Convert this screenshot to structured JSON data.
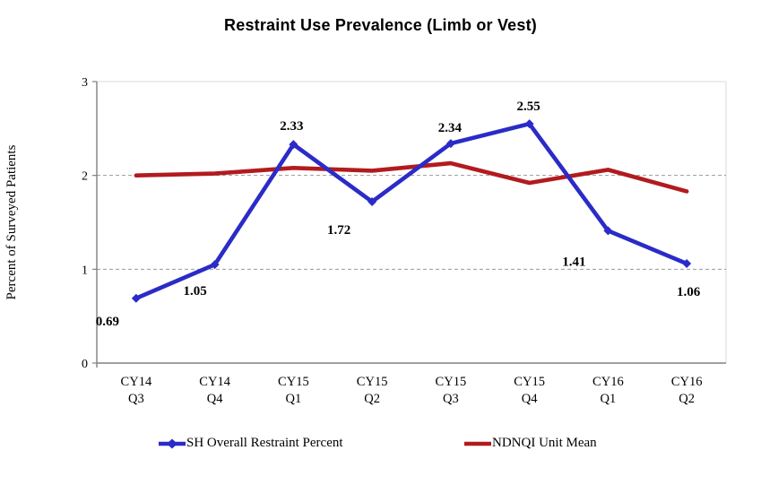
{
  "title": "Restraint Use Prevalence (Limb or Vest)",
  "chart_data": {
    "type": "line",
    "title": "Restraint Use Prevalence (Limb or Vest)",
    "xlabel": "",
    "ylabel": "Percent of Surveyed Patients",
    "ylim": [
      0,
      3
    ],
    "yticks": [
      "0",
      "1",
      "2",
      "3"
    ],
    "grid": "horizontal dashed gridlines at y=1 and y=2, light solid plot border top and right",
    "legend_position": "bottom",
    "categories": [
      [
        "CY14",
        "Q3"
      ],
      [
        "CY14",
        "Q4"
      ],
      [
        "CY15",
        "Q1"
      ],
      [
        "CY15",
        "Q2"
      ],
      [
        "CY15",
        "Q3"
      ],
      [
        "CY15",
        "Q4"
      ],
      [
        "CY16",
        "Q1"
      ],
      [
        "CY16",
        "Q2"
      ]
    ],
    "series": [
      {
        "name": "SH Overall Restraint Percent",
        "color": "#2B2BC8",
        "marker": "diamond",
        "values": [
          0.69,
          1.05,
          2.33,
          1.72,
          2.34,
          2.55,
          1.41,
          1.06
        ],
        "data_labels": [
          "0.69",
          "1.05",
          "2.33",
          "1.72",
          "2.34",
          "2.55",
          "1.41",
          "1.06"
        ],
        "label_offsets": [
          [
            -32,
            25
          ],
          [
            -22,
            29
          ],
          [
            -2,
            -21
          ],
          [
            -37,
            31
          ],
          [
            -1,
            -18
          ],
          [
            -1,
            -20
          ],
          [
            -38,
            34
          ],
          [
            2,
            31
          ]
        ]
      },
      {
        "name": "NDNQI Unit Mean",
        "color": "#B21B1E",
        "marker": "none",
        "values": [
          2.0,
          2.02,
          2.08,
          2.05,
          2.13,
          1.92,
          2.06,
          1.83
        ],
        "data_labels": [],
        "label_offsets": []
      }
    ]
  },
  "legend": {
    "items": [
      {
        "label": "SH Overall Restraint Percent",
        "color": "#2B2BC8",
        "marker": "diamond"
      },
      {
        "label": "NDNQI Unit Mean",
        "color": "#B21B1E",
        "marker": "line"
      }
    ]
  }
}
